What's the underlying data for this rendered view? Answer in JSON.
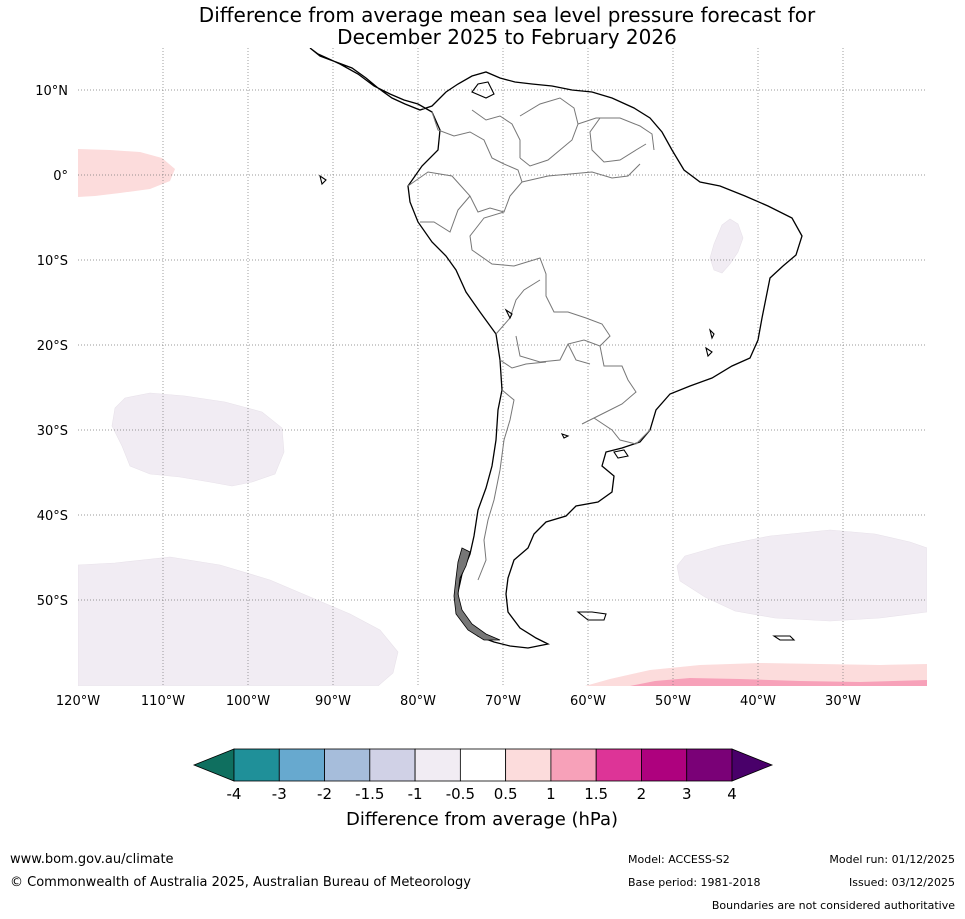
{
  "title": {
    "line1": "Difference from average mean sea level pressure forecast for",
    "line2": "December 2025 to February 2026"
  },
  "map": {
    "lat_labels": [
      "10°N",
      "0°",
      "10°S",
      "20°S",
      "30°S",
      "40°S",
      "50°S"
    ],
    "lon_labels": [
      "120°W",
      "110°W",
      "100°W",
      "90°W",
      "80°W",
      "70°W",
      "60°W",
      "50°W",
      "40°W",
      "30°W"
    ],
    "anomaly_regions": [
      {
        "name": "Pacific equatorial area",
        "class": "0.5 to 1 hPa",
        "color": "#fcdcdc"
      },
      {
        "name": "Southeast Pacific area",
        "class": "-1 to -0.5 hPa",
        "color": "#f1ecf3"
      },
      {
        "name": "Southern Pacific area",
        "class": "-1 to -0.5 hPa",
        "color": "#f1ecf3"
      },
      {
        "name": "South Atlantic area",
        "class": "-1 to -0.5 hPa",
        "color": "#f1ecf3"
      },
      {
        "name": "Northeast Brazil area",
        "class": "-1 to -0.5 hPa",
        "color": "#f1ecf3"
      },
      {
        "name": "Southern Ocean band",
        "class": "0.5 to 1 hPa",
        "color": "#fcdcdc"
      },
      {
        "name": "Southern Ocean band inner",
        "class": "1 to 1.5 hPa",
        "color": "#f7a1b9"
      }
    ]
  },
  "colorbar": {
    "ticks": [
      "-4",
      "-3",
      "-2",
      "-1.5",
      "-1",
      "-0.5",
      "0.5",
      "1",
      "1.5",
      "2",
      "3",
      "4"
    ],
    "colors": [
      "#0f6f5f",
      "#1f9099",
      "#67a9cf",
      "#a6bddb",
      "#d0d1e6",
      "#f1ecf3",
      "#ffffff",
      "#fcdcdc",
      "#f7a1b9",
      "#dd3497",
      "#ae017e",
      "#7a0177",
      "#49006a"
    ],
    "label": "Difference from average (hPa)"
  },
  "footer": {
    "url": "www.bom.gov.au/climate",
    "copyright": "© Commonwealth of Australia 2025, Australian Bureau of Meteorology",
    "model": "Model: ACCESS-S2",
    "base_period": "Base period: 1981-2018",
    "model_run": "Model run: 01/12/2025",
    "issued": "Issued: 03/12/2025",
    "boundaries": "Boundaries are not considered authoritative"
  }
}
